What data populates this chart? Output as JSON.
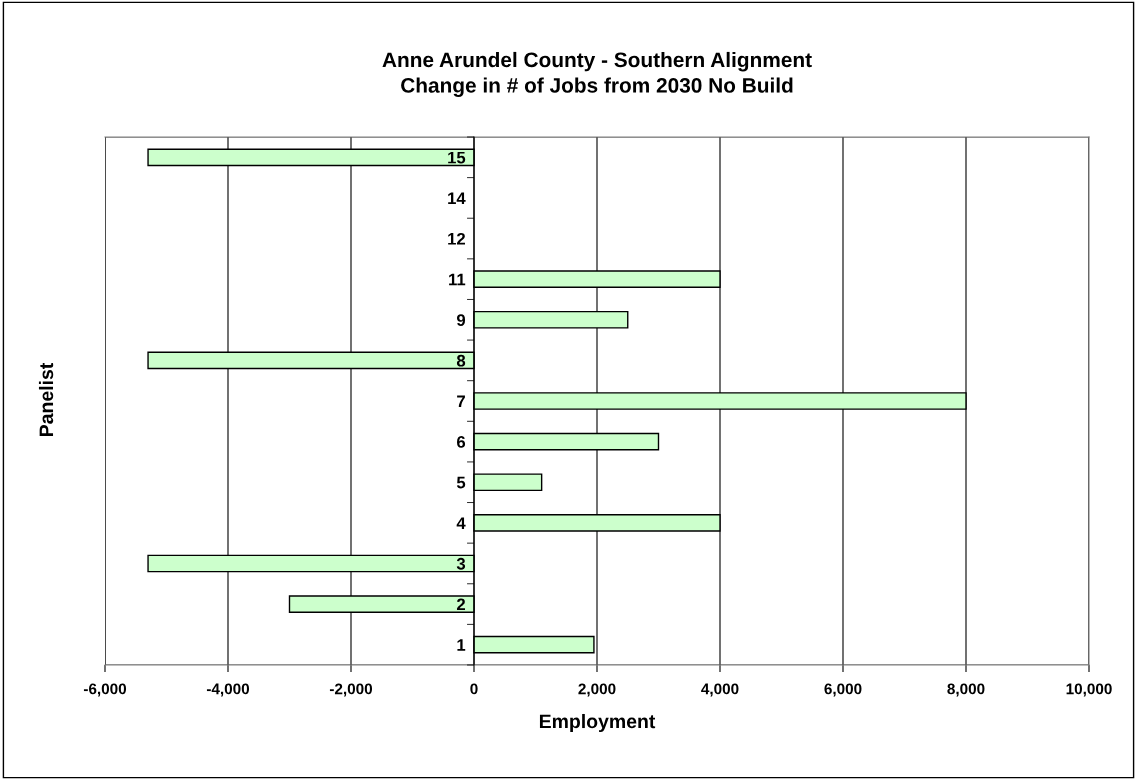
{
  "chart_data": {
    "type": "bar",
    "orientation": "horizontal",
    "title": "Anne Arundel County - Southern Alignment\nChange in # of Jobs from 2030 No Build",
    "xlabel": "Employment",
    "ylabel": "Panelist",
    "categories": [
      "15",
      "14",
      "12",
      "11",
      "9",
      "8",
      "7",
      "6",
      "5",
      "4",
      "3",
      "2",
      "1"
    ],
    "values": [
      -5300,
      null,
      null,
      4000,
      2500,
      -5300,
      8000,
      3000,
      1100,
      4000,
      -5300,
      -3000,
      1950
    ],
    "color": "#ccffcc",
    "xlim": [
      -6000,
      10000
    ],
    "xticks": [
      {
        "value": -6000,
        "label": "-6,000"
      },
      {
        "value": -4000,
        "label": "-4,000"
      },
      {
        "value": -2000,
        "label": "-2,000"
      },
      0,
      {
        "value": 2000,
        "label": "2,000"
      },
      {
        "value": 4000,
        "label": "4,000"
      },
      {
        "value": 6000,
        "label": "6,000"
      },
      {
        "value": 8000,
        "label": "8,000"
      },
      {
        "value": 10000,
        "label": "10,000"
      }
    ],
    "grid": "x",
    "legend": false
  }
}
